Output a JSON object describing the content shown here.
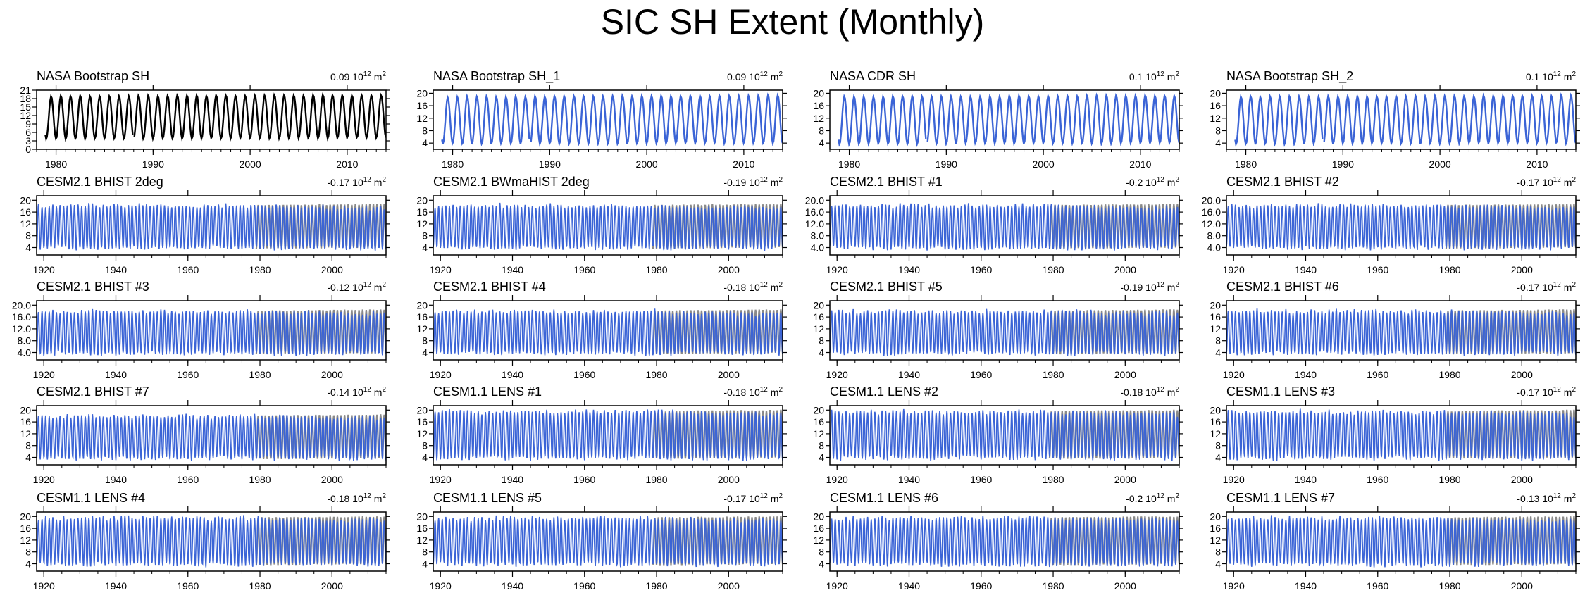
{
  "figure": {
    "title": "SIC SH Extent (Monthly)",
    "trend_unit": "10",
    "trend_exp": "12",
    "trend_unit2": "m",
    "trend_exp2": "2"
  },
  "colors": {
    "obs": "#000000",
    "model": "#3b64d6",
    "obs_overlay": "#8a8a8a",
    "frame": "#000000"
  },
  "chart_data": [
    {
      "type": "line",
      "title": "NASA Bootstrap SH",
      "trend": "0.09",
      "series_color": "obs",
      "x_range": [
        1978,
        2014
      ],
      "ylim": [
        0,
        21
      ],
      "yticks": [
        0,
        3,
        6,
        9,
        12,
        15,
        18,
        21
      ],
      "ytick_labels": [
        "0",
        "3",
        "6",
        "9",
        "12",
        "15",
        "18",
        "21"
      ],
      "xticks": [
        1980,
        1990,
        2000,
        2010
      ],
      "obs_overlay": false,
      "mean": 11.3,
      "amp": 7.6,
      "gap_year": 1988
    },
    {
      "type": "line",
      "title": "NASA Bootstrap SH_1",
      "trend": "0.09",
      "series_color": "model",
      "x_range": [
        1978,
        2014
      ],
      "ylim": [
        2,
        21
      ],
      "yticks": [
        4,
        8,
        12,
        16,
        20
      ],
      "ytick_labels": [
        "4",
        "8",
        "12",
        "16",
        "20"
      ],
      "xticks": [
        1980,
        1990,
        2000,
        2010
      ],
      "obs_overlay": false,
      "mean": 11.3,
      "amp": 7.6,
      "gap_year": 1988
    },
    {
      "type": "line",
      "title": "NASA CDR SH",
      "trend": "0.1",
      "series_color": "model",
      "x_range": [
        1978,
        2014
      ],
      "ylim": [
        2,
        21
      ],
      "yticks": [
        4,
        8,
        12,
        16,
        20
      ],
      "ytick_labels": [
        "4",
        "8",
        "12",
        "16",
        "20"
      ],
      "xticks": [
        1980,
        1990,
        2000,
        2010
      ],
      "obs_overlay": false,
      "mean": 11.3,
      "amp": 7.6,
      "gap_year": 1988
    },
    {
      "type": "line",
      "title": "NASA Bootstrap SH_2",
      "trend": "0.1",
      "series_color": "model",
      "x_range": [
        1978,
        2014
      ],
      "ylim": [
        2,
        21
      ],
      "yticks": [
        4,
        8,
        12,
        16,
        20
      ],
      "ytick_labels": [
        "4",
        "8",
        "12",
        "16",
        "20"
      ],
      "xticks": [
        1980,
        1990,
        2000,
        2010
      ],
      "obs_overlay": false,
      "mean": 11.3,
      "amp": 7.6,
      "gap_year": 1988
    },
    {
      "type": "line",
      "title": "CESM2.1 BHIST 2deg",
      "trend": "-0.17",
      "series_color": "model",
      "x_range": [
        1918,
        2015
      ],
      "ylim": [
        1.5,
        21.5
      ],
      "yticks": [
        4,
        8,
        12,
        16,
        20
      ],
      "ytick_labels": [
        "4",
        "8",
        "12",
        "16",
        "20"
      ],
      "xticks": [
        1920,
        1940,
        1960,
        1980,
        2000
      ],
      "obs_overlay": true,
      "mean": 11.0,
      "amp": 7.3
    },
    {
      "type": "line",
      "title": "CESM2.1 BWmaHIST 2deg",
      "trend": "-0.19",
      "series_color": "model",
      "x_range": [
        1918,
        2015
      ],
      "ylim": [
        1.5,
        21.5
      ],
      "yticks": [
        4,
        8,
        12,
        16,
        20
      ],
      "ytick_labels": [
        "4",
        "8",
        "12",
        "16",
        "20"
      ],
      "xticks": [
        1920,
        1940,
        1960,
        1980,
        2000
      ],
      "obs_overlay": true,
      "mean": 11.0,
      "amp": 7.3
    },
    {
      "type": "line",
      "title": "CESM2.1 BHIST #1",
      "trend": "-0.2",
      "series_color": "model",
      "x_range": [
        1918,
        2015
      ],
      "ylim": [
        1.5,
        21.5
      ],
      "yticks": [
        4,
        8,
        12,
        16,
        20
      ],
      "ytick_labels": [
        "4.0",
        "8.0",
        "12.0",
        "16.0",
        "20.0"
      ],
      "xticks": [
        1920,
        1940,
        1960,
        1980,
        2000
      ],
      "obs_overlay": true,
      "mean": 11.0,
      "amp": 7.3
    },
    {
      "type": "line",
      "title": "CESM2.1 BHIST #2",
      "trend": "-0.17",
      "series_color": "model",
      "x_range": [
        1918,
        2015
      ],
      "ylim": [
        1.5,
        21.5
      ],
      "yticks": [
        4,
        8,
        12,
        16,
        20
      ],
      "ytick_labels": [
        "4.0",
        "8.0",
        "12.0",
        "16.0",
        "20.0"
      ],
      "xticks": [
        1920,
        1940,
        1960,
        1980,
        2000
      ],
      "obs_overlay": true,
      "mean": 11.0,
      "amp": 7.3
    },
    {
      "type": "line",
      "title": "CESM2.1 BHIST #3",
      "trend": "-0.12",
      "series_color": "model",
      "x_range": [
        1918,
        2015
      ],
      "ylim": [
        1.5,
        21.5
      ],
      "yticks": [
        4,
        8,
        12,
        16,
        20
      ],
      "ytick_labels": [
        "4.0",
        "8.0",
        "12.0",
        "16.0",
        "20.0"
      ],
      "xticks": [
        1920,
        1940,
        1960,
        1980,
        2000
      ],
      "obs_overlay": true,
      "mean": 10.8,
      "amp": 7.3
    },
    {
      "type": "line",
      "title": "CESM2.1 BHIST #4",
      "trend": "-0.18",
      "series_color": "model",
      "x_range": [
        1918,
        2015
      ],
      "ylim": [
        1.5,
        21.5
      ],
      "yticks": [
        4,
        8,
        12,
        16,
        20
      ],
      "ytick_labels": [
        "4",
        "8",
        "12",
        "16",
        "20"
      ],
      "xticks": [
        1920,
        1940,
        1960,
        1980,
        2000
      ],
      "obs_overlay": true,
      "mean": 10.8,
      "amp": 7.3
    },
    {
      "type": "line",
      "title": "CESM2.1 BHIST #5",
      "trend": "-0.19",
      "series_color": "model",
      "x_range": [
        1918,
        2015
      ],
      "ylim": [
        1.5,
        21.5
      ],
      "yticks": [
        4,
        8,
        12,
        16,
        20
      ],
      "ytick_labels": [
        "4",
        "8",
        "12",
        "16",
        "20"
      ],
      "xticks": [
        1920,
        1940,
        1960,
        1980,
        2000
      ],
      "obs_overlay": true,
      "mean": 10.8,
      "amp": 7.3
    },
    {
      "type": "line",
      "title": "CESM2.1 BHIST #6",
      "trend": "-0.17",
      "series_color": "model",
      "x_range": [
        1918,
        2015
      ],
      "ylim": [
        1.5,
        21.5
      ],
      "yticks": [
        4,
        8,
        12,
        16,
        20
      ],
      "ytick_labels": [
        "4",
        "8",
        "12",
        "16",
        "20"
      ],
      "xticks": [
        1920,
        1940,
        1960,
        1980,
        2000
      ],
      "obs_overlay": true,
      "mean": 10.8,
      "amp": 7.3
    },
    {
      "type": "line",
      "title": "CESM2.1 BHIST #7",
      "trend": "-0.14",
      "series_color": "model",
      "x_range": [
        1918,
        2015
      ],
      "ylim": [
        1.5,
        21.5
      ],
      "yticks": [
        4,
        8,
        12,
        16,
        20
      ],
      "ytick_labels": [
        "4",
        "8",
        "12",
        "16",
        "20"
      ],
      "xticks": [
        1920,
        1940,
        1960,
        1980,
        2000
      ],
      "obs_overlay": true,
      "mean": 10.8,
      "amp": 7.3
    },
    {
      "type": "line",
      "title": "CESM1.1 LENS #1",
      "trend": "-0.18",
      "series_color": "model",
      "x_range": [
        1918,
        2015
      ],
      "ylim": [
        1.5,
        21.5
      ],
      "yticks": [
        4,
        8,
        12,
        16,
        20
      ],
      "ytick_labels": [
        "4",
        "8",
        "12",
        "16",
        "20"
      ],
      "xticks": [
        1920,
        1940,
        1960,
        1980,
        2000
      ],
      "obs_overlay": true,
      "mean": 11.6,
      "amp": 8.0
    },
    {
      "type": "line",
      "title": "CESM1.1 LENS #2",
      "trend": "-0.18",
      "series_color": "model",
      "x_range": [
        1918,
        2015
      ],
      "ylim": [
        1.5,
        21.5
      ],
      "yticks": [
        4,
        8,
        12,
        16,
        20
      ],
      "ytick_labels": [
        "4",
        "8",
        "12",
        "16",
        "20"
      ],
      "xticks": [
        1920,
        1940,
        1960,
        1980,
        2000
      ],
      "obs_overlay": true,
      "mean": 11.6,
      "amp": 8.0
    },
    {
      "type": "line",
      "title": "CESM1.1 LENS #3",
      "trend": "-0.17",
      "series_color": "model",
      "x_range": [
        1918,
        2015
      ],
      "ylim": [
        1.5,
        21.5
      ],
      "yticks": [
        4,
        8,
        12,
        16,
        20
      ],
      "ytick_labels": [
        "4",
        "8",
        "12",
        "16",
        "20"
      ],
      "xticks": [
        1920,
        1940,
        1960,
        1980,
        2000
      ],
      "obs_overlay": true,
      "mean": 11.6,
      "amp": 8.0
    },
    {
      "type": "line",
      "title": "CESM1.1 LENS #4",
      "trend": "-0.18",
      "series_color": "model",
      "x_range": [
        1918,
        2015
      ],
      "ylim": [
        1.5,
        21.5
      ],
      "yticks": [
        4,
        8,
        12,
        16,
        20
      ],
      "ytick_labels": [
        "4",
        "8",
        "12",
        "16",
        "20"
      ],
      "xticks": [
        1920,
        1940,
        1960,
        1980,
        2000
      ],
      "obs_overlay": true,
      "mean": 11.6,
      "amp": 8.0
    },
    {
      "type": "line",
      "title": "CESM1.1 LENS #5",
      "trend": "-0.17",
      "series_color": "model",
      "x_range": [
        1918,
        2015
      ],
      "ylim": [
        1.5,
        21.5
      ],
      "yticks": [
        4,
        8,
        12,
        16,
        20
      ],
      "ytick_labels": [
        "4",
        "8",
        "12",
        "16",
        "20"
      ],
      "xticks": [
        1920,
        1940,
        1960,
        1980,
        2000
      ],
      "obs_overlay": true,
      "mean": 11.6,
      "amp": 8.0
    },
    {
      "type": "line",
      "title": "CESM1.1 LENS #6",
      "trend": "-0.2",
      "series_color": "model",
      "x_range": [
        1918,
        2015
      ],
      "ylim": [
        1.5,
        21.5
      ],
      "yticks": [
        4,
        8,
        12,
        16,
        20
      ],
      "ytick_labels": [
        "4",
        "8",
        "12",
        "16",
        "20"
      ],
      "xticks": [
        1920,
        1940,
        1960,
        1980,
        2000
      ],
      "obs_overlay": true,
      "mean": 11.6,
      "amp": 8.0
    },
    {
      "type": "line",
      "title": "CESM1.1 LENS #7",
      "trend": "-0.13",
      "series_color": "model",
      "x_range": [
        1918,
        2015
      ],
      "ylim": [
        1.5,
        21.5
      ],
      "yticks": [
        4,
        8,
        12,
        16,
        20
      ],
      "ytick_labels": [
        "4",
        "8",
        "12",
        "16",
        "20"
      ],
      "xticks": [
        1920,
        1940,
        1960,
        1980,
        2000
      ],
      "obs_overlay": true,
      "mean": 11.6,
      "amp": 8.0
    }
  ]
}
